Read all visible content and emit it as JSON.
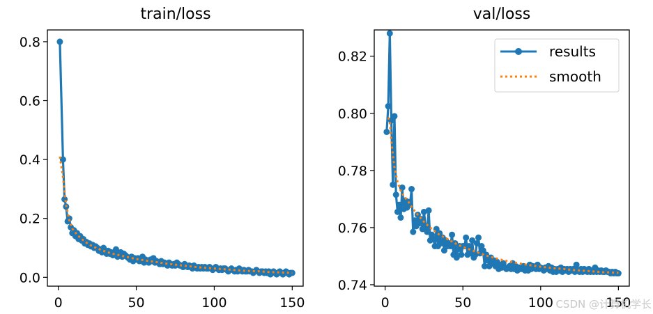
{
  "chart_data": [
    {
      "type": "line",
      "title": "train/loss",
      "xlabel": "",
      "ylabel": "",
      "xlim": [
        -7,
        157
      ],
      "ylim": [
        -0.03,
        0.84
      ],
      "xticks": [
        0,
        50,
        100,
        150
      ],
      "xtick_labels": [
        "0",
        "50",
        "100",
        "150"
      ],
      "yticks": [
        0.0,
        0.2,
        0.4,
        0.6,
        0.8
      ],
      "ytick_labels": [
        "0.0",
        "0.2",
        "0.4",
        "0.6",
        "0.8"
      ],
      "grid": false,
      "legend": null,
      "series": [
        {
          "name": "results",
          "color": "#1f77b4",
          "style": "solid-with-markers",
          "x": [
            1,
            3,
            4,
            5,
            6,
            7,
            8,
            9,
            10,
            11,
            12,
            13,
            14,
            15,
            16,
            17,
            18,
            19,
            20,
            21,
            22,
            23,
            24,
            25,
            26,
            27,
            28,
            29,
            30,
            31,
            32,
            33,
            34,
            35,
            36,
            37,
            38,
            39,
            40,
            41,
            42,
            43,
            44,
            45,
            46,
            47,
            48,
            49,
            50,
            51,
            52,
            53,
            54,
            55,
            56,
            57,
            58,
            59,
            60,
            61,
            62,
            63,
            64,
            65,
            66,
            67,
            68,
            69,
            70,
            71,
            72,
            73,
            74,
            75,
            76,
            77,
            78,
            79,
            80,
            81,
            82,
            83,
            84,
            85,
            86,
            87,
            88,
            89,
            90,
            91,
            92,
            93,
            94,
            95,
            96,
            97,
            98,
            99,
            100,
            101,
            102,
            103,
            104,
            105,
            106,
            107,
            108,
            109,
            110,
            111,
            112,
            113,
            114,
            115,
            116,
            117,
            118,
            119,
            120,
            121,
            122,
            123,
            124,
            125,
            126,
            127,
            128,
            129,
            130,
            131,
            132,
            133,
            134,
            135,
            136,
            137,
            138,
            139,
            140,
            141,
            142,
            143,
            144,
            145,
            146,
            147,
            148,
            149,
            150
          ],
          "y": [
            0.8,
            0.4,
            0.265,
            0.24,
            0.19,
            0.2,
            0.17,
            0.15,
            0.16,
            0.14,
            0.15,
            0.13,
            0.14,
            0.125,
            0.13,
            0.115,
            0.12,
            0.11,
            0.115,
            0.105,
            0.11,
            0.1,
            0.105,
            0.1,
            0.09,
            0.095,
            0.085,
            0.1,
            0.085,
            0.08,
            0.09,
            0.08,
            0.085,
            0.075,
            0.08,
            0.095,
            0.07,
            0.08,
            0.085,
            0.07,
            0.08,
            0.075,
            0.07,
            0.065,
            0.06,
            0.07,
            0.055,
            0.065,
            0.06,
            0.065,
            0.055,
            0.06,
            0.07,
            0.05,
            0.06,
            0.055,
            0.05,
            0.06,
            0.055,
            0.065,
            0.05,
            0.055,
            0.05,
            0.045,
            0.055,
            0.045,
            0.05,
            0.045,
            0.04,
            0.05,
            0.045,
            0.04,
            0.045,
            0.04,
            0.05,
            0.045,
            0.04,
            0.04,
            0.035,
            0.045,
            0.04,
            0.035,
            0.04,
            0.035,
            0.03,
            0.04,
            0.035,
            0.03,
            0.035,
            0.03,
            0.035,
            0.03,
            0.035,
            0.03,
            0.03,
            0.035,
            0.03,
            0.025,
            0.03,
            0.035,
            0.03,
            0.025,
            0.03,
            0.025,
            0.03,
            0.03,
            0.025,
            0.02,
            0.025,
            0.03,
            0.025,
            0.02,
            0.025,
            0.02,
            0.03,
            0.025,
            0.02,
            0.025,
            0.02,
            0.02,
            0.025,
            0.02,
            0.02,
            0.015,
            0.02,
            0.025,
            0.02,
            0.015,
            0.02,
            0.02,
            0.015,
            0.02,
            0.015,
            0.02,
            0.01,
            0.015,
            0.02,
            0.015,
            0.01,
            0.015,
            0.02,
            0.015,
            0.01,
            0.015,
            0.02,
            0.015,
            0.01,
            0.015,
            0.015
          ]
        },
        {
          "name": "smooth",
          "color": "#ff7f0e",
          "style": "dotted",
          "x": [
            1,
            3,
            5,
            7,
            9,
            12,
            15,
            18,
            21,
            25,
            30,
            35,
            40,
            45,
            50,
            55,
            60,
            65,
            70,
            75,
            80,
            85,
            90,
            95,
            100,
            105,
            110,
            115,
            120,
            125,
            130,
            135,
            140,
            145,
            150
          ],
          "y": [
            0.41,
            0.34,
            0.245,
            0.195,
            0.165,
            0.145,
            0.13,
            0.118,
            0.108,
            0.098,
            0.088,
            0.08,
            0.074,
            0.068,
            0.062,
            0.058,
            0.054,
            0.05,
            0.046,
            0.043,
            0.04,
            0.037,
            0.034,
            0.032,
            0.03,
            0.028,
            0.026,
            0.024,
            0.022,
            0.021,
            0.02,
            0.018,
            0.017,
            0.016,
            0.015
          ]
        }
      ]
    },
    {
      "type": "line",
      "title": "val/loss",
      "xlabel": "",
      "ylabel": "",
      "xlim": [
        -7,
        157
      ],
      "ylim": [
        0.7395,
        0.8292
      ],
      "xticks": [
        0,
        50,
        100,
        150
      ],
      "xtick_labels": [
        "0",
        "50",
        "100",
        "150"
      ],
      "yticks": [
        0.74,
        0.76,
        0.78,
        0.8,
        0.82
      ],
      "ytick_labels": [
        "0.74",
        "0.76",
        "0.78",
        "0.80",
        "0.82"
      ],
      "grid": false,
      "legend": {
        "placement": "top-right",
        "entries": [
          "results",
          "smooth"
        ]
      },
      "series": [
        {
          "name": "results",
          "color": "#1f77b4",
          "style": "solid-with-markers",
          "x": [
            1,
            2,
            3,
            4,
            5,
            6,
            7,
            8,
            9,
            10,
            11,
            12,
            13,
            14,
            15,
            16,
            17,
            18,
            19,
            20,
            21,
            22,
            23,
            24,
            25,
            26,
            27,
            28,
            29,
            30,
            31,
            32,
            33,
            34,
            35,
            36,
            37,
            38,
            39,
            40,
            41,
            42,
            43,
            44,
            45,
            46,
            47,
            48,
            49,
            50,
            51,
            52,
            53,
            54,
            55,
            56,
            57,
            58,
            59,
            60,
            61,
            62,
            63,
            64,
            65,
            66,
            67,
            68,
            69,
            70,
            71,
            72,
            73,
            74,
            75,
            76,
            77,
            78,
            79,
            80,
            81,
            82,
            83,
            84,
            85,
            86,
            87,
            88,
            89,
            90,
            91,
            92,
            93,
            94,
            95,
            96,
            97,
            98,
            99,
            100,
            101,
            102,
            103,
            104,
            105,
            106,
            107,
            108,
            109,
            110,
            111,
            112,
            113,
            114,
            115,
            116,
            117,
            118,
            119,
            120,
            121,
            122,
            123,
            124,
            125,
            126,
            127,
            128,
            129,
            130,
            131,
            132,
            133,
            134,
            135,
            136,
            137,
            138,
            139,
            140,
            141,
            142,
            143,
            144,
            145,
            146,
            147,
            148,
            149,
            150
          ],
          "y": [
            0.7935,
            0.8025,
            0.828,
            0.7975,
            0.775,
            0.799,
            0.7715,
            0.7655,
            0.768,
            0.7635,
            0.774,
            0.7665,
            0.7695,
            0.767,
            0.769,
            0.768,
            0.7735,
            0.7585,
            0.7625,
            0.7605,
            0.7645,
            0.7615,
            0.763,
            0.7595,
            0.7655,
            0.7605,
            0.7585,
            0.766,
            0.7555,
            0.7575,
            0.756,
            0.7535,
            0.7595,
            0.7535,
            0.758,
            0.7545,
            0.7565,
            0.752,
            0.7555,
            0.7535,
            0.7545,
            0.7535,
            0.7575,
            0.7505,
            0.7545,
            0.7495,
            0.7525,
            0.7535,
            0.7505,
            0.7535,
            0.7535,
            0.7565,
            0.7505,
            0.7535,
            0.751,
            0.7555,
            0.7495,
            0.7505,
            0.7545,
            0.7565,
            0.751,
            0.7535,
            0.752,
            0.7465,
            0.7505,
            0.7485,
            0.7465,
            0.7495,
            0.7475,
            0.7485,
            0.7465,
            0.748,
            0.7455,
            0.747,
            0.746,
            0.7475,
            0.746,
            0.7455,
            0.746,
            0.7465,
            0.7455,
            0.7475,
            0.7455,
            0.7465,
            0.745,
            0.746,
            0.7455,
            0.7455,
            0.7465,
            0.745,
            0.746,
            0.745,
            0.747,
            0.7455,
            0.7465,
            0.746,
            0.7455,
            0.747,
            0.7455,
            0.746,
            0.7455,
            0.745,
            0.746,
            0.7455,
            0.7465,
            0.745,
            0.746,
            0.7445,
            0.7455,
            0.7445,
            0.7455,
            0.745,
            0.746,
            0.7445,
            0.7455,
            0.745,
            0.7455,
            0.7445,
            0.7455,
            0.745,
            0.7455,
            0.7445,
            0.747,
            0.745,
            0.7445,
            0.7455,
            0.7445,
            0.7455,
            0.745,
            0.7445,
            0.7455,
            0.7445,
            0.745,
            0.7445,
            0.746,
            0.7445,
            0.745,
            0.7445,
            0.745,
            0.7445,
            0.7445,
            0.745,
            0.7445,
            0.7445,
            0.744,
            0.7445,
            0.744,
            0.7445,
            0.744,
            0.744
          ]
        },
        {
          "name": "smooth",
          "color": "#ff7f0e",
          "style": "dotted",
          "x": [
            2,
            3,
            4,
            5,
            6,
            8,
            10,
            12,
            15,
            18,
            21,
            25,
            30,
            35,
            40,
            45,
            50,
            55,
            60,
            65,
            70,
            75,
            80,
            85,
            90,
            95,
            100,
            105,
            110,
            115,
            120,
            125,
            130,
            135,
            140,
            145,
            150
          ],
          "y": [
            0.7985,
            0.797,
            0.7905,
            0.7855,
            0.781,
            0.776,
            0.773,
            0.771,
            0.769,
            0.7665,
            0.7645,
            0.762,
            0.7595,
            0.7575,
            0.756,
            0.7545,
            0.7532,
            0.7522,
            0.7512,
            0.7502,
            0.7494,
            0.7487,
            0.7481,
            0.7476,
            0.7471,
            0.7467,
            0.7463,
            0.746,
            0.7457,
            0.7455,
            0.7452,
            0.745,
            0.7448,
            0.7446,
            0.7444,
            0.7443,
            0.7442
          ]
        }
      ]
    }
  ],
  "legend": {
    "results_label": "results",
    "smooth_label": "smooth"
  },
  "watermark": "CSDN @计算机学长"
}
